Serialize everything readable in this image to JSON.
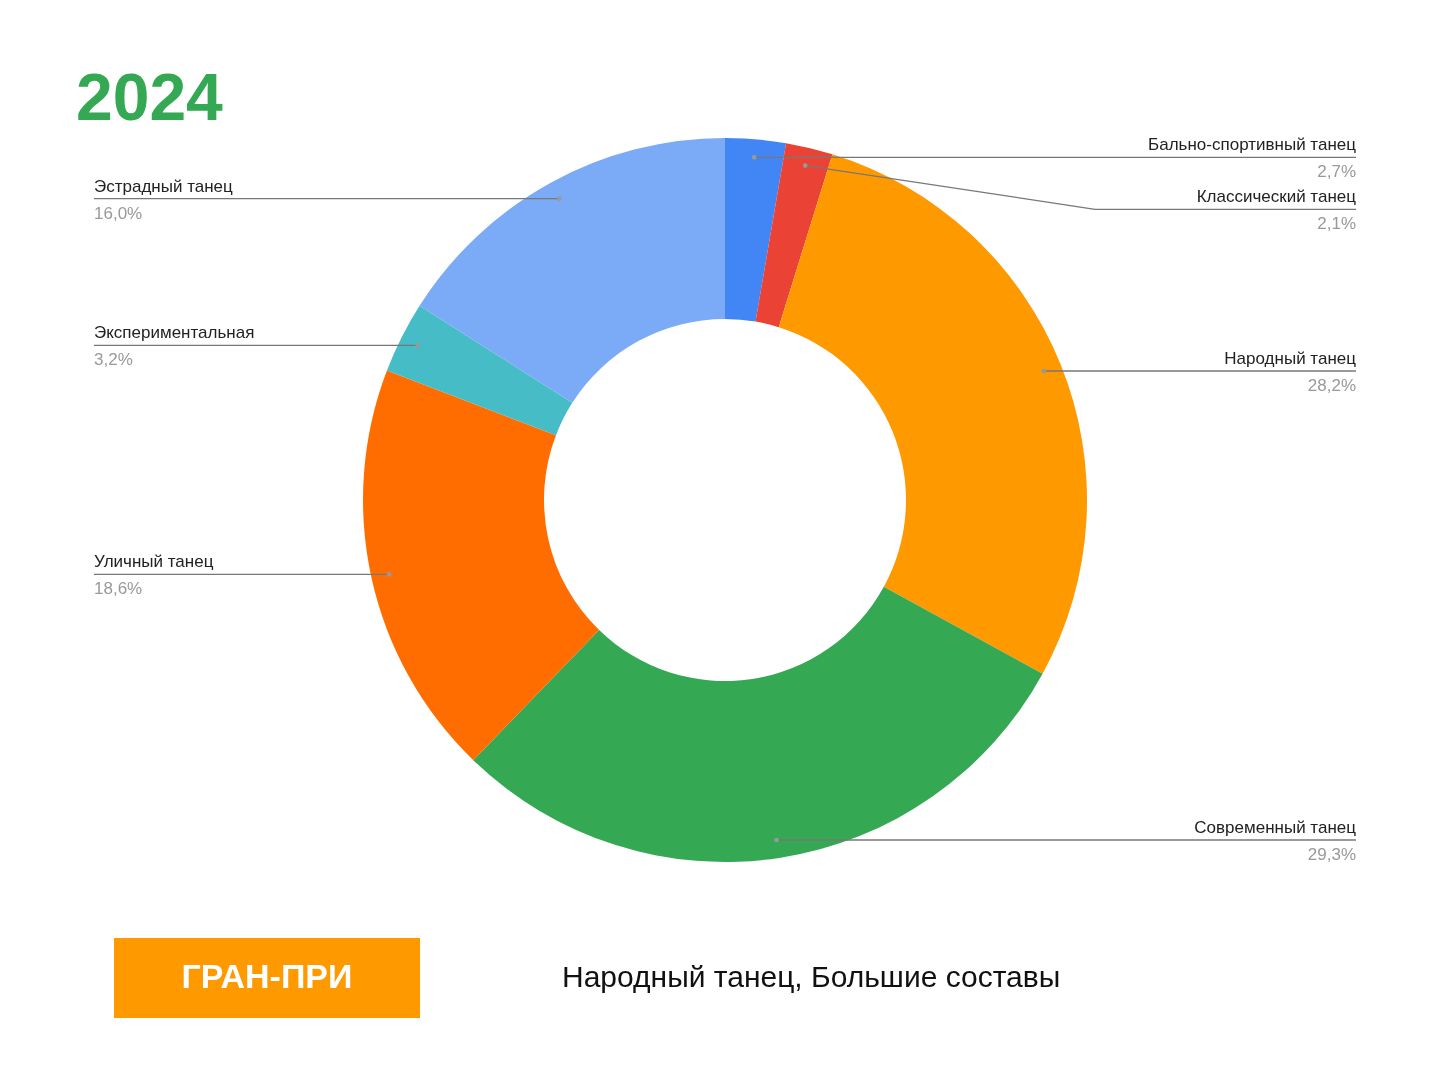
{
  "chart_data": {
    "type": "donut",
    "title": "2024",
    "categories": [
      "Бально-спортивный танец",
      "Классический танец",
      "Народный танец",
      "Современный танец",
      "Уличный танец",
      "Экспериментальная",
      "Эстрадный танец"
    ],
    "values": [
      2.7,
      2.1,
      28.2,
      29.3,
      18.6,
      3.2,
      16.0
    ],
    "colors": [
      "#4285f4",
      "#ea4335",
      "#ff9900",
      "#34a853",
      "#ff6d01",
      "#46bdc6",
      "#7baaf7"
    ],
    "value_labels": [
      "2,7%",
      "2,1%",
      "28,2%",
      "29,3%",
      "18,6%",
      "3,2%",
      "16,0%"
    ],
    "annotations": [
      "ГРАН-ПРИ",
      "Народный танец, Большие составы"
    ]
  }
}
